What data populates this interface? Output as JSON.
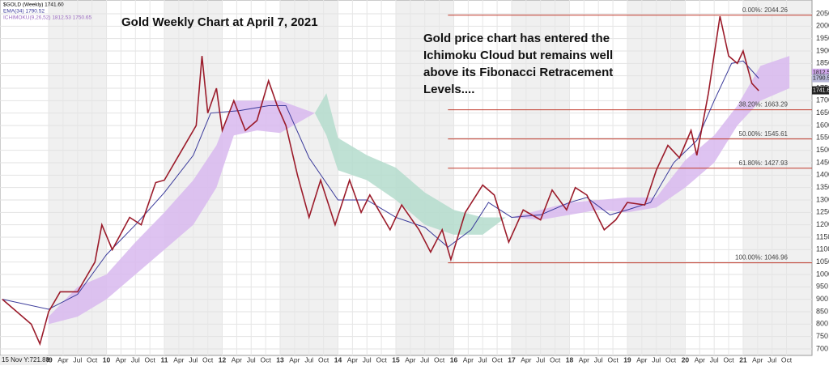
{
  "chart_data": {
    "type": "line",
    "title": "Gold Weekly Chart at April 7, 2021",
    "annotation": [
      "Gold price chart has entered the",
      "Ichimoku Cloud but remains well",
      "above its Fibonacci Retracement",
      "Levels...."
    ],
    "legend": [
      "$GOLD (Weekly) 1741.60",
      "EMA(34) 1790.52",
      "ICHIMOKU(9,26,52) 1812.53 1750.65"
    ],
    "legend_colors": [
      "#000000",
      "#3a3a9a",
      "#9a6ac0"
    ],
    "cursor_label": "15 Nov Y:721.88",
    "grid": true,
    "xlim": [
      2008.16,
      2022.19
    ],
    "ylim": [
      700,
      2050
    ],
    "xticks": [
      {
        "value": 2009,
        "label": "09"
      },
      {
        "value": 2009.25,
        "label": "Apr"
      },
      {
        "value": 2009.5,
        "label": "Jul"
      },
      {
        "value": 2009.75,
        "label": "Oct"
      },
      {
        "value": 2010,
        "label": "10"
      },
      {
        "value": 2010.25,
        "label": "Apr"
      },
      {
        "value": 2010.5,
        "label": "Jul"
      },
      {
        "value": 2010.75,
        "label": "Oct"
      },
      {
        "value": 2011,
        "label": "11"
      },
      {
        "value": 2011.25,
        "label": "Apr"
      },
      {
        "value": 2011.5,
        "label": "Jul"
      },
      {
        "value": 2011.75,
        "label": "Oct"
      },
      {
        "value": 2012,
        "label": "12"
      },
      {
        "value": 2012.25,
        "label": "Apr"
      },
      {
        "value": 2012.5,
        "label": "Jul"
      },
      {
        "value": 2012.75,
        "label": "Oct"
      },
      {
        "value": 2013,
        "label": "13"
      },
      {
        "value": 2013.25,
        "label": "Apr"
      },
      {
        "value": 2013.5,
        "label": "Jul"
      },
      {
        "value": 2013.75,
        "label": "Oct"
      },
      {
        "value": 2014,
        "label": "14"
      },
      {
        "value": 2014.25,
        "label": "Apr"
      },
      {
        "value": 2014.5,
        "label": "Jul"
      },
      {
        "value": 2014.75,
        "label": "Oct"
      },
      {
        "value": 2015,
        "label": "15"
      },
      {
        "value": 2015.25,
        "label": "Apr"
      },
      {
        "value": 2015.5,
        "label": "Jul"
      },
      {
        "value": 2015.75,
        "label": "Oct"
      },
      {
        "value": 2016,
        "label": "16"
      },
      {
        "value": 2016.25,
        "label": "Apr"
      },
      {
        "value": 2016.5,
        "label": "Jul"
      },
      {
        "value": 2016.75,
        "label": "Oct"
      },
      {
        "value": 2017,
        "label": "17"
      },
      {
        "value": 2017.25,
        "label": "Apr"
      },
      {
        "value": 2017.5,
        "label": "Jul"
      },
      {
        "value": 2017.75,
        "label": "Oct"
      },
      {
        "value": 2018,
        "label": "18"
      },
      {
        "value": 2018.25,
        "label": "Apr"
      },
      {
        "value": 2018.5,
        "label": "Jul"
      },
      {
        "value": 2018.75,
        "label": "Oct"
      },
      {
        "value": 2019,
        "label": "19"
      },
      {
        "value": 2019.25,
        "label": "Apr"
      },
      {
        "value": 2019.5,
        "label": "Jul"
      },
      {
        "value": 2019.75,
        "label": "Oct"
      },
      {
        "value": 2020,
        "label": "20"
      },
      {
        "value": 2020.25,
        "label": "Apr"
      },
      {
        "value": 2020.5,
        "label": "Jul"
      },
      {
        "value": 2020.75,
        "label": "Oct"
      },
      {
        "value": 2021,
        "label": "21"
      },
      {
        "value": 2021.25,
        "label": "Apr"
      },
      {
        "value": 2021.5,
        "label": "Jul"
      },
      {
        "value": 2021.75,
        "label": "Oct"
      }
    ],
    "yticks": [
      700,
      750,
      800,
      850,
      900,
      950,
      1000,
      1050,
      1100,
      1150,
      1200,
      1250,
      1300,
      1350,
      1400,
      1450,
      1500,
      1550,
      1600,
      1650,
      1700,
      1750,
      1800,
      1850,
      1900,
      1950,
      2000,
      2050
    ],
    "clouds": [
      {
        "color": "#d8b8ee",
        "x": [
          2009.0,
          2009.5,
          2010.0,
          2010.5,
          2011.0,
          2011.5,
          2011.9,
          2012.2,
          2012.6,
          2013.0,
          2013.6
        ],
        "upper": [
          830,
          950,
          1000,
          1130,
          1250,
          1380,
          1520,
          1700,
          1700,
          1700,
          1650
        ],
        "lower": [
          800,
          830,
          900,
          1000,
          1100,
          1200,
          1350,
          1560,
          1580,
          1570,
          1650
        ]
      },
      {
        "color": "#b4dccd",
        "x": [
          2013.6,
          2013.8,
          2014.0,
          2014.5,
          2015.0,
          2015.5,
          2016.0,
          2016.5,
          2016.9
        ],
        "upper": [
          1650,
          1730,
          1550,
          1480,
          1430,
          1330,
          1260,
          1230,
          1230
        ],
        "lower": [
          1650,
          1560,
          1420,
          1380,
          1300,
          1200,
          1160,
          1160,
          1230
        ]
      },
      {
        "color": "#d8b8ee",
        "x": [
          2017.0,
          2017.5,
          2018.0,
          2018.5,
          2019.0,
          2019.5,
          2020.0,
          2020.5,
          2020.9,
          2021.3,
          2021.8
        ],
        "upper": [
          1230,
          1260,
          1290,
          1300,
          1310,
          1310,
          1460,
          1560,
          1680,
          1840,
          1880
        ],
        "lower": [
          1230,
          1220,
          1240,
          1260,
          1250,
          1270,
          1350,
          1450,
          1600,
          1700,
          1750
        ]
      }
    ],
    "series": [
      {
        "color": "#3a3a9a",
        "x": [
          2008.2,
          2009.0,
          2009.5,
          2010.0,
          2010.5,
          2011.0,
          2011.5,
          2011.8,
          2012.3,
          2012.8,
          2013.1,
          2013.5,
          2014.0,
          2014.5,
          2015.0,
          2015.5,
          2015.9,
          2016.3,
          2016.6,
          2017.0,
          2017.5,
          2018.0,
          2018.3,
          2018.7,
          2019.0,
          2019.4,
          2019.8,
          2020.2,
          2020.5,
          2020.8,
          2021.0,
          2021.27
        ],
        "values": [
          900,
          860,
          920,
          1080,
          1200,
          1330,
          1480,
          1650,
          1660,
          1680,
          1680,
          1470,
          1300,
          1300,
          1230,
          1190,
          1110,
          1180,
          1290,
          1230,
          1240,
          1290,
          1310,
          1240,
          1260,
          1290,
          1450,
          1540,
          1700,
          1850,
          1860,
          1790
        ]
      },
      {
        "color": "#9b1b2a",
        "x": [
          2008.2,
          2008.7,
          2008.85,
          2009.0,
          2009.2,
          2009.5,
          2009.8,
          2009.92,
          2010.1,
          2010.4,
          2010.6,
          2010.85,
          2011.0,
          2011.3,
          2011.55,
          2011.65,
          2011.75,
          2011.9,
          2012.0,
          2012.2,
          2012.4,
          2012.6,
          2012.8,
          2012.95,
          2013.1,
          2013.3,
          2013.5,
          2013.7,
          2013.95,
          2014.2,
          2014.4,
          2014.55,
          2014.9,
          2015.1,
          2015.4,
          2015.6,
          2015.8,
          2015.95,
          2016.2,
          2016.5,
          2016.7,
          2016.95,
          2017.2,
          2017.5,
          2017.7,
          2017.95,
          2018.1,
          2018.3,
          2018.6,
          2018.8,
          2019.0,
          2019.3,
          2019.5,
          2019.7,
          2019.9,
          2020.1,
          2020.2,
          2020.4,
          2020.6,
          2020.75,
          2020.9,
          2021.0,
          2021.15,
          2021.27
        ],
        "values": [
          900,
          800,
          720,
          850,
          930,
          930,
          1050,
          1200,
          1100,
          1230,
          1200,
          1370,
          1380,
          1500,
          1600,
          1880,
          1650,
          1750,
          1580,
          1700,
          1580,
          1620,
          1780,
          1680,
          1600,
          1400,
          1230,
          1380,
          1200,
          1380,
          1250,
          1320,
          1180,
          1280,
          1180,
          1090,
          1180,
          1060,
          1250,
          1360,
          1320,
          1130,
          1260,
          1220,
          1340,
          1260,
          1350,
          1320,
          1180,
          1220,
          1290,
          1280,
          1420,
          1520,
          1470,
          1580,
          1480,
          1730,
          2040,
          1880,
          1850,
          1900,
          1770,
          1740
        ]
      }
    ],
    "fib_start": 2015.9,
    "fib_color": "#c0392b",
    "fib_levels": [
      {
        "value": 2044.26,
        "label": "0.00%: 2044.26"
      },
      {
        "value": 1663.29,
        "label": "38.20%: 1663.29"
      },
      {
        "value": 1545.61,
        "label": "50.00%: 1545.61"
      },
      {
        "value": 1427.93,
        "label": "61.80%: 1427.93"
      },
      {
        "value": 1046.96,
        "label": "100.00%: 1046.96"
      }
    ],
    "price_tags": [
      1812.53,
      1790.52,
      {
        "value": 1741.6,
        "label": "1741.60"
      }
    ],
    "price_tag_colors": [
      "#cfa8ea",
      "#b8b8d8",
      "#222222"
    ]
  }
}
